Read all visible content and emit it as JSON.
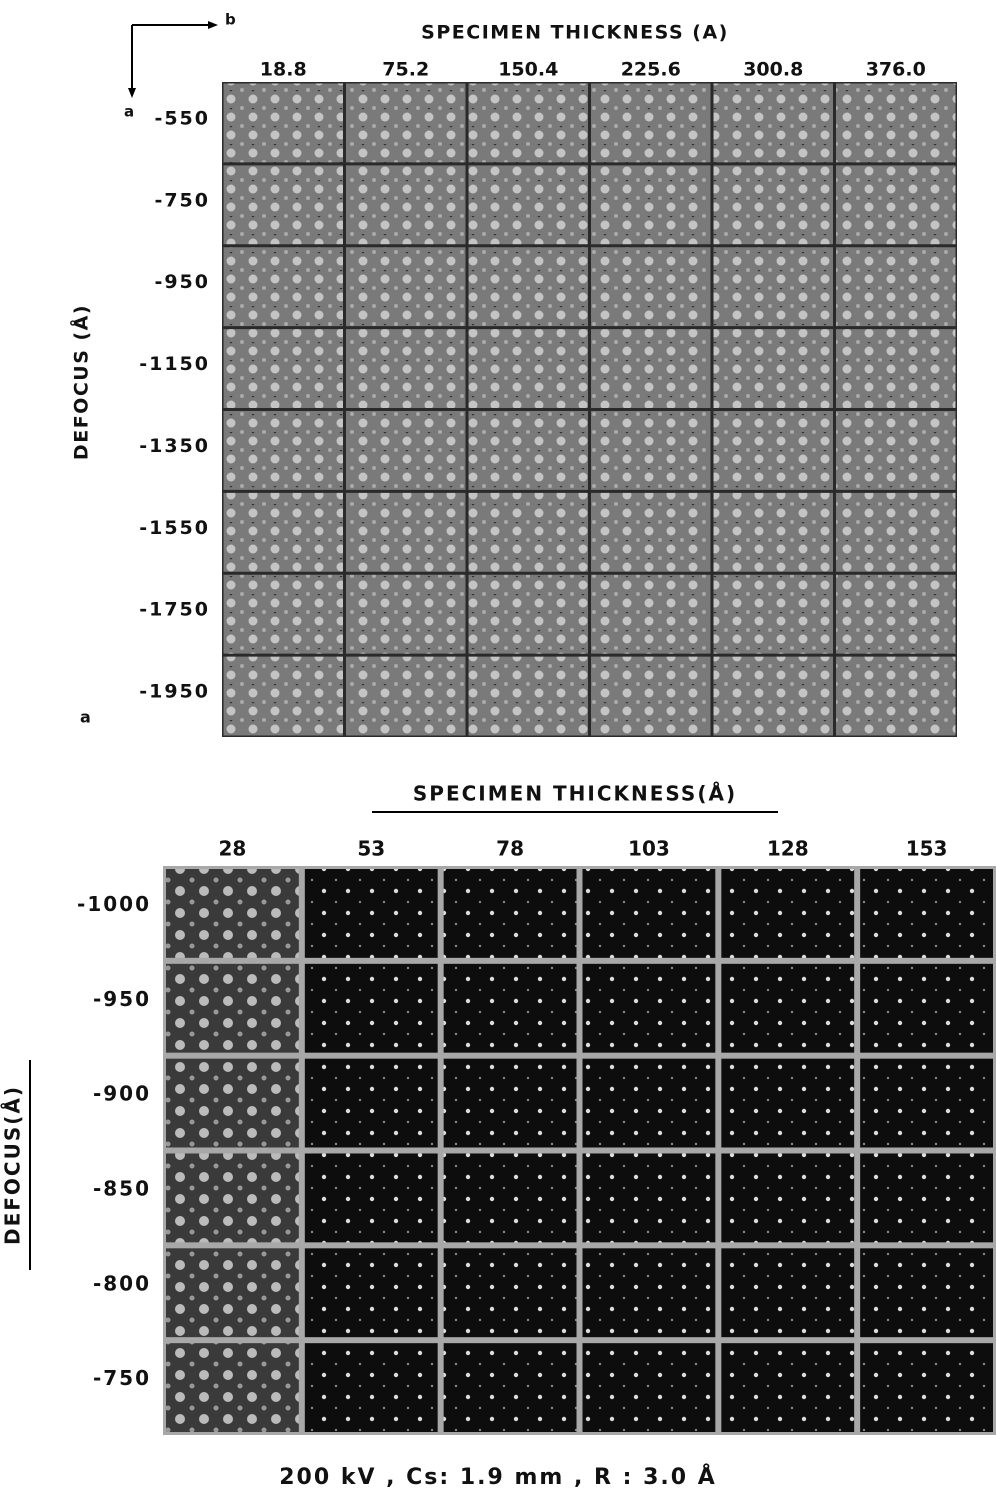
{
  "panel_a": {
    "arrow_b": "b",
    "arrow_a": "a",
    "title": "SPECIMEN THICKNESS (A)",
    "columns": [
      "18.8",
      "75.2",
      "150.4",
      "225.6",
      "300.8",
      "376.0"
    ],
    "y_label": "DEFOCUS (Å)",
    "rows": [
      "-550",
      "-750",
      "-950",
      "-1150",
      "-1350",
      "-1550",
      "-1750",
      "-1950"
    ],
    "panel_label": "a"
  },
  "panel_b": {
    "title": "SPECIMEN THICKNESS(Å)",
    "columns": [
      "28",
      "53",
      "78",
      "103",
      "128",
      "153"
    ],
    "y_label": "DEFOCUS(Å)",
    "rows": [
      "-1000",
      "-950",
      "-900",
      "-850",
      "-800",
      "-750"
    ],
    "caption": "200 kV , Cs: 1.9 mm , R : 3.0 Å"
  }
}
